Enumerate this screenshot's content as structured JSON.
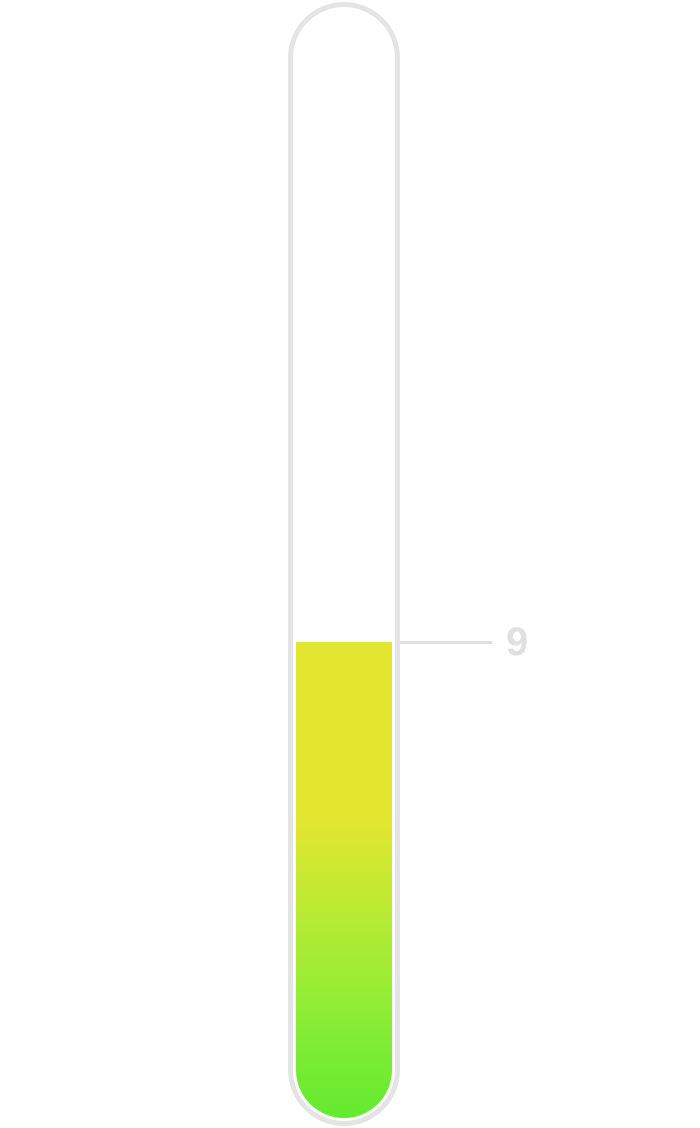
{
  "level": {
    "value": 9,
    "display": "9",
    "fill_fraction": 0.43
  },
  "colors": {
    "tube_border": "#e4e4e4",
    "fill_top": "#e2e62f",
    "fill_bottom": "#62eb30",
    "marker": "#e0e0e0"
  }
}
